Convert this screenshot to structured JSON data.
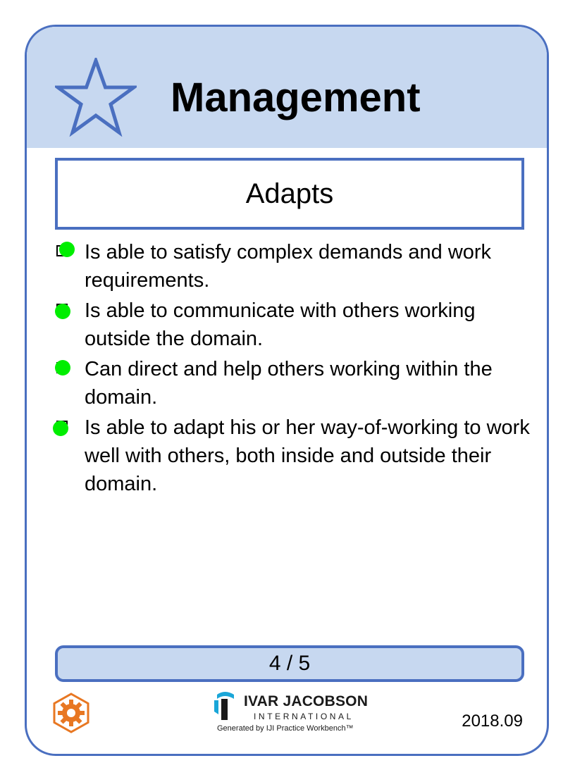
{
  "card": {
    "category": "Management",
    "state": "Adapts",
    "checklist": [
      {
        "text": "Is able to satisfy complex demands and work requirements.",
        "checked": true
      },
      {
        "text": "Is able to communicate with others working outside the domain.",
        "checked": true
      },
      {
        "text": "Can direct and help others working within the domain.",
        "checked": true
      },
      {
        "text": "Is able to adapt his or her way-of-working to work well with others, both inside and outside their domain.",
        "checked": true
      }
    ],
    "progress": "4 / 5",
    "progress_value": {
      "current": 4,
      "total": 5
    },
    "date": "2018.09"
  },
  "footer": {
    "brand": "IVAR JACOBSON",
    "brand_sub": "INTERNATIONAL",
    "generated": "Generated by IJI Practice Workbench™"
  },
  "icons": {
    "header": "star-icon",
    "footer_left": "gear-icon",
    "logo": "iji-logo-icon"
  },
  "colors": {
    "accent": "#4a6fc0",
    "header_bg": "#c7d8f0",
    "check_dot": "#00ee00",
    "gear": "#e87722"
  }
}
